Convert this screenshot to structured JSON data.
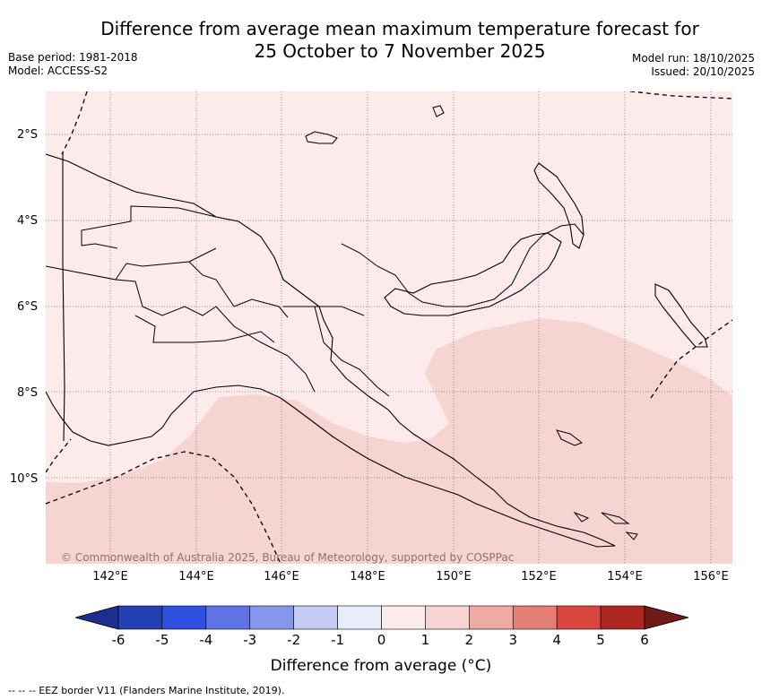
{
  "title": {
    "line1": "Difference from average mean maximum temperature forecast for",
    "line2": "25 October to 7 November 2025"
  },
  "meta": {
    "base_period": "Base period: 1981-2018",
    "model": "Model: ACCESS-S2",
    "model_run": "Model run: 18/10/2025",
    "issued": "Issued: 20/10/2025"
  },
  "map": {
    "lat_labels": [
      "2°S",
      "4°S",
      "6°S",
      "8°S",
      "10°S"
    ],
    "lon_labels": [
      "142°E",
      "144°E",
      "146°E",
      "148°E",
      "150°E",
      "152°E",
      "154°E",
      "156°E"
    ],
    "copyright": "© Commonwealth of Australia 2025, Bureau of Meteorology, supported by COSPPac",
    "colors": {
      "base": "#fcebea",
      "anomaly_1_2": "#f6d4d2",
      "border": "#000000"
    }
  },
  "colorbar": {
    "labels": [
      "-6",
      "-5",
      "-4",
      "-3",
      "-2",
      "-1",
      "0",
      "1",
      "2",
      "3",
      "4",
      "5",
      "6"
    ],
    "colors": [
      "#1c2f8e",
      "#2440b3",
      "#2f4fde",
      "#5e73e5",
      "#8696ec",
      "#c3cbf5",
      "#e9ecfb",
      "#fcebea",
      "#f6d4d2",
      "#eeaaa4",
      "#e57f76",
      "#d9463e",
      "#ad2720",
      "#6e1a16"
    ],
    "title": "Difference from average (°C)"
  },
  "footnote": "-- -- -- EEZ border V11 (Flanders Marine Institute, 2019)."
}
